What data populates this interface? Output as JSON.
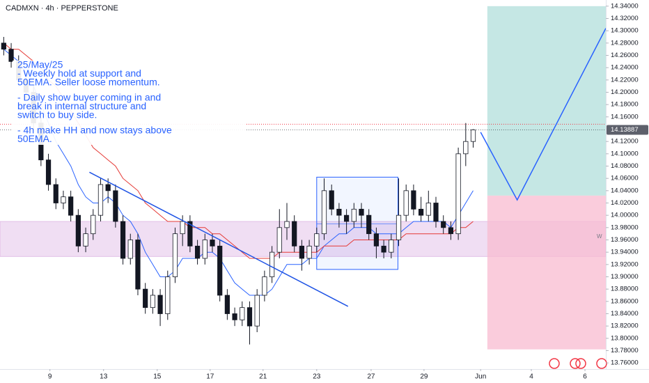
{
  "chart_data": {
    "type": "candlestick",
    "title": "CADMXN · 4h · PEPPERSTONE",
    "x": [
      0,
      1,
      2,
      3,
      4,
      5,
      6,
      7,
      8,
      9,
      10,
      11,
      12,
      13,
      14,
      15,
      16,
      17,
      18,
      19,
      20,
      21,
      22,
      23,
      24,
      25,
      26,
      27,
      28,
      29,
      30,
      31,
      32,
      33,
      34,
      35,
      36,
      37,
      38,
      39,
      40,
      41,
      42,
      43,
      44,
      45,
      46,
      47,
      48,
      49,
      50,
      51,
      52,
      53,
      54,
      55,
      56,
      57,
      58,
      59,
      60,
      61,
      62,
      63
    ],
    "xlim": [
      -0.5,
      80.8
    ],
    "xticks": [
      {
        "value": 6.2,
        "label": "9"
      },
      {
        "value": 13.4,
        "label": "13"
      },
      {
        "value": 20.6,
        "label": "15"
      },
      {
        "value": 27.7,
        "label": "17"
      },
      {
        "value": 34.8,
        "label": "21"
      },
      {
        "value": 42.0,
        "label": "23"
      },
      {
        "value": 49.3,
        "label": "27"
      },
      {
        "value": 56.4,
        "label": "29"
      },
      {
        "value": 64.0,
        "label": "Jun"
      },
      {
        "value": 70.8,
        "label": "4"
      },
      {
        "value": 78.0,
        "label": "6"
      }
    ],
    "ylim": [
      13.75,
      14.35
    ],
    "yticks": [
      {
        "value": 14.34,
        "label": "14.34000"
      },
      {
        "value": 14.32,
        "label": "14.32000"
      },
      {
        "value": 14.3,
        "label": "14.30000"
      },
      {
        "value": 14.28,
        "label": "14.28000"
      },
      {
        "value": 14.26,
        "label": "14.26000"
      },
      {
        "value": 14.24,
        "label": "14.24000"
      },
      {
        "value": 14.22,
        "label": "14.22000"
      },
      {
        "value": 14.2,
        "label": "14.20000"
      },
      {
        "value": 14.18,
        "label": "14.18000"
      },
      {
        "value": 14.16,
        "label": "14.16000"
      },
      {
        "value": 14.12,
        "label": "14.12000"
      },
      {
        "value": 14.1,
        "label": "14.10000"
      },
      {
        "value": 14.08,
        "label": "14.08000"
      },
      {
        "value": 14.06,
        "label": "14.06000"
      },
      {
        "value": 14.04,
        "label": "14.04000"
      },
      {
        "value": 14.02,
        "label": "14.02000"
      },
      {
        "value": 14.0,
        "label": "14.00000"
      },
      {
        "value": 13.98,
        "label": "13.98000"
      },
      {
        "value": 13.96,
        "label": "13.96000"
      },
      {
        "value": 13.94,
        "label": "13.94000"
      },
      {
        "value": 13.92,
        "label": "13.92000"
      },
      {
        "value": 13.9,
        "label": "13.90000"
      },
      {
        "value": 13.88,
        "label": "13.88000"
      },
      {
        "value": 13.86,
        "label": "13.86000"
      },
      {
        "value": 13.84,
        "label": "13.84000"
      },
      {
        "value": 13.82,
        "label": "13.82000"
      },
      {
        "value": 13.8,
        "label": "13.80000"
      },
      {
        "value": 13.78,
        "label": "13.78000"
      },
      {
        "value": 13.76,
        "label": "13.76000"
      }
    ],
    "candles": {
      "color_up": "#ffffff",
      "color_down": "#131722",
      "color_edge": "#131722",
      "open": [
        14.28,
        14.27,
        14.25,
        14.22,
        14.2,
        14.15,
        14.09,
        14.05,
        14.02,
        14.03,
        14.0,
        13.95,
        13.97,
        14.0,
        14.05,
        14.04,
        13.99,
        13.93,
        13.96,
        13.88,
        13.85,
        13.87,
        13.84,
        13.9,
        13.97,
        13.99,
        13.95,
        13.93,
        13.96,
        13.95,
        13.87,
        13.84,
        13.83,
        13.85,
        13.82,
        13.87,
        13.9,
        13.94,
        13.98,
        13.99,
        13.95,
        13.93,
        13.95,
        13.97,
        14.04,
        14.01,
        14.0,
        13.99,
        14.01,
        14.0,
        13.97,
        13.95,
        13.94,
        13.96,
        14.0,
        14.04,
        14.01,
        14.0,
        14.02,
        13.99,
        13.98,
        13.97,
        14.1,
        14.12
      ],
      "high": [
        14.29,
        14.28,
        14.26,
        14.23,
        14.21,
        14.16,
        14.1,
        14.06,
        14.04,
        14.04,
        14.01,
        13.98,
        14.01,
        14.06,
        14.06,
        14.05,
        14.0,
        13.97,
        13.97,
        13.89,
        13.88,
        13.88,
        13.91,
        13.98,
        14.0,
        14.0,
        13.96,
        13.97,
        13.97,
        13.96,
        13.88,
        13.85,
        13.86,
        13.86,
        13.88,
        13.91,
        13.95,
        14.01,
        14.02,
        14.0,
        13.96,
        13.96,
        13.98,
        14.06,
        14.05,
        14.02,
        14.01,
        14.02,
        14.02,
        14.01,
        13.98,
        13.96,
        13.97,
        14.06,
        14.05,
        14.05,
        14.03,
        14.04,
        14.03,
        14.0,
        13.99,
        14.11,
        14.15,
        14.14
      ],
      "low": [
        14.26,
        14.24,
        14.21,
        14.19,
        14.14,
        14.08,
        14.04,
        14.01,
        14.01,
        13.99,
        13.94,
        13.94,
        13.96,
        13.99,
        14.02,
        13.98,
        13.92,
        13.92,
        13.87,
        13.84,
        13.84,
        13.82,
        13.83,
        13.89,
        13.95,
        13.94,
        13.92,
        13.92,
        13.94,
        13.86,
        13.83,
        13.82,
        13.82,
        13.79,
        13.81,
        13.86,
        13.89,
        13.93,
        13.96,
        13.94,
        13.91,
        13.92,
        13.94,
        13.96,
        14.0,
        13.98,
        13.97,
        13.98,
        13.98,
        13.96,
        13.93,
        13.93,
        13.93,
        13.95,
        13.99,
        14.0,
        13.99,
        13.99,
        13.98,
        13.97,
        13.96,
        13.96,
        14.08,
        14.11
      ],
      "close": [
        14.27,
        14.25,
        14.22,
        14.2,
        14.15,
        14.09,
        14.05,
        14.02,
        14.03,
        14.0,
        13.95,
        13.97,
        14.0,
        14.05,
        14.04,
        13.99,
        13.93,
        13.96,
        13.88,
        13.85,
        13.87,
        13.84,
        13.9,
        13.97,
        13.99,
        13.95,
        13.93,
        13.96,
        13.95,
        13.87,
        13.84,
        13.83,
        13.85,
        13.82,
        13.87,
        13.9,
        13.94,
        13.98,
        13.99,
        13.95,
        13.93,
        13.95,
        13.97,
        14.04,
        14.01,
        14.0,
        13.99,
        14.01,
        14.0,
        13.97,
        13.95,
        13.94,
        13.96,
        14.0,
        14.04,
        14.01,
        14.0,
        14.02,
        13.99,
        13.98,
        13.97,
        14.1,
        14.12,
        14.13887
      ]
    },
    "series": [
      {
        "type": "line",
        "color": "#2962ff",
        "values": [
          14.27,
          14.26,
          14.25,
          14.23,
          14.21,
          14.18,
          14.15,
          14.12,
          14.1,
          14.08,
          14.05,
          14.03,
          14.02,
          14.02,
          14.03,
          14.02,
          14.0,
          13.99,
          13.97,
          13.94,
          13.92,
          13.9,
          13.9,
          13.91,
          13.93,
          13.93,
          13.93,
          13.94,
          13.94,
          13.93,
          13.91,
          13.89,
          13.88,
          13.87,
          13.87,
          13.87,
          13.88,
          13.9,
          13.92,
          13.92,
          13.92,
          13.93,
          13.93,
          13.95,
          13.96,
          13.97,
          13.97,
          13.98,
          13.98,
          13.98,
          13.97,
          13.97,
          13.97,
          13.97,
          13.98,
          13.99,
          13.99,
          13.99,
          13.99,
          13.99,
          13.98,
          14.0,
          14.02,
          14.04
        ]
      },
      {
        "type": "line",
        "color": "#e53935",
        "values": [
          14.28,
          14.27,
          14.27,
          14.26,
          14.25,
          14.24,
          14.22,
          14.21,
          14.19,
          14.17,
          14.15,
          14.13,
          14.11,
          14.1,
          14.09,
          14.08,
          14.06,
          14.05,
          14.04,
          14.02,
          14.01,
          14.0,
          13.99,
          13.99,
          13.99,
          13.98,
          13.98,
          13.98,
          13.97,
          13.97,
          13.96,
          13.95,
          13.94,
          13.93,
          13.93,
          13.93,
          13.93,
          13.94,
          13.94,
          13.94,
          13.94,
          13.94,
          13.94,
          13.95,
          13.95,
          13.95,
          13.95,
          13.96,
          13.96,
          13.96,
          13.96,
          13.96,
          13.96,
          13.96,
          13.97,
          13.97,
          13.97,
          13.97,
          13.97,
          13.97,
          13.97,
          13.98,
          13.98,
          13.99
        ]
      }
    ],
    "drawings": {
      "zone": {
        "y": [
          13.933,
          13.99
        ],
        "color": "#ce93d8"
      },
      "trendline": {
        "x": [
          11.5,
          46.2
        ],
        "y": [
          14.07,
          13.852
        ],
        "color": "#1e53e5"
      },
      "range_box": {
        "x": [
          42.0,
          52.9
        ],
        "y": [
          13.912,
          14.062
        ],
        "mid": 13.986,
        "color": "#2962ff"
      },
      "position": {
        "x": [
          64.9,
          80.8
        ],
        "target": 14.34,
        "entry": 14.032,
        "stop": 13.782,
        "color_profit": "#b2dfdb",
        "color_loss": "#f8bbd0"
      },
      "projection": {
        "x": [
          64.0,
          68.9,
          80.8
        ],
        "y": [
          14.135,
          14.025,
          14.304
        ],
        "color": "#2962ff"
      },
      "price_line": {
        "y": 14.148,
        "color": "#f23645"
      }
    },
    "notes": [
      [
        "25/May/25",
        "- Weekly hold at support and",
        "50EMA. Seller loose momentum."
      ],
      [
        "- Daily show buyer coming in and",
        "break in internal structure and",
        "switch to buy side."
      ],
      [
        "- 4h make HH and now stays above",
        "50EMA."
      ]
    ],
    "marker": "W"
  }
}
